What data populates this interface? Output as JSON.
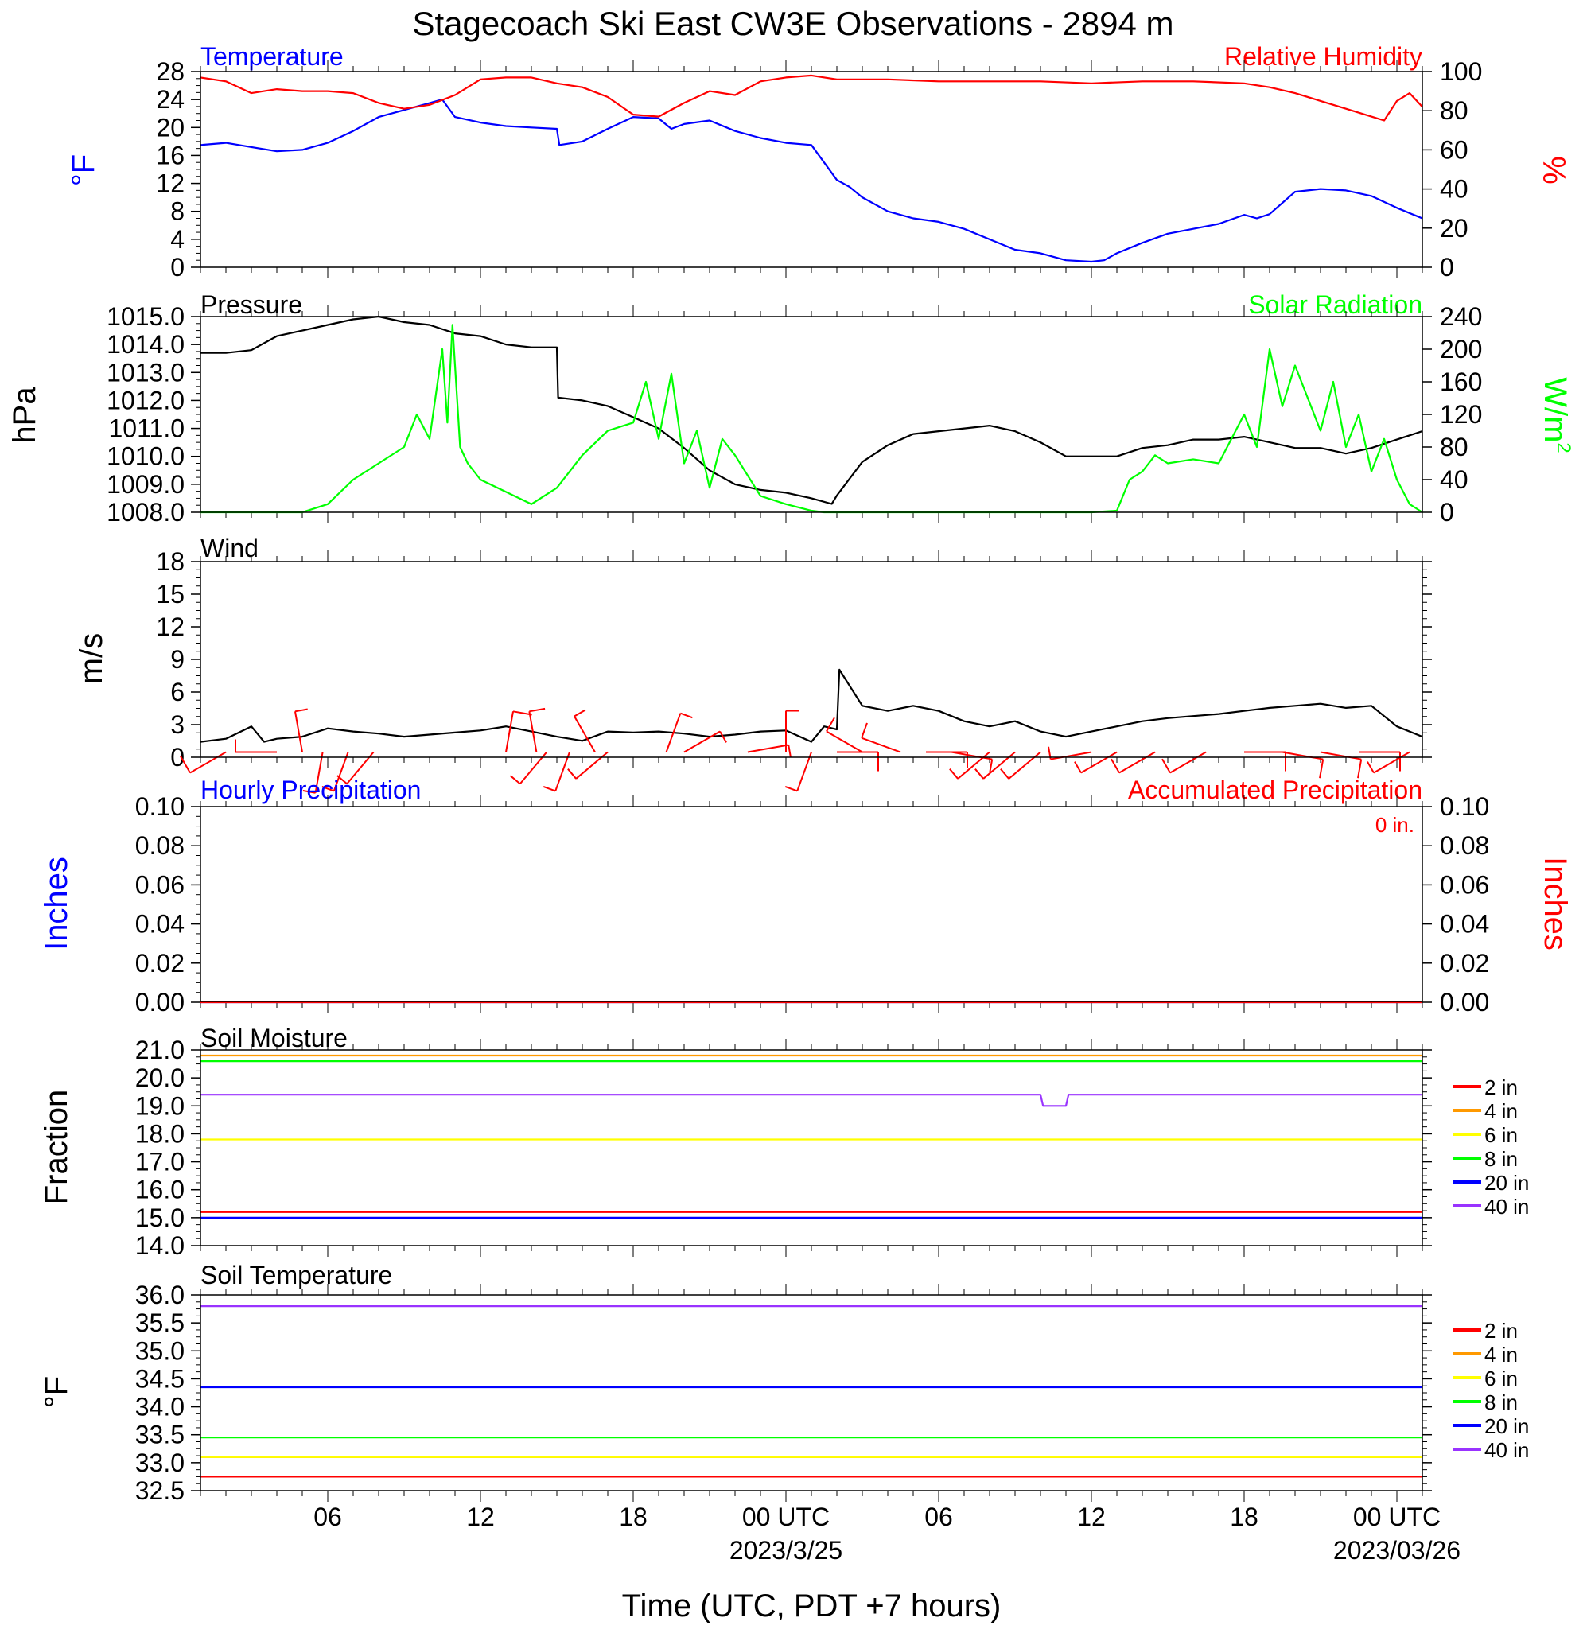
{
  "title": "Stagecoach Ski East CW3E Observations - 2894 m",
  "colors": {
    "temperature": "#0000ff",
    "humidity": "#ff0000",
    "pressure": "#000000",
    "solar": "#00ff00",
    "wind_speed": "#000000",
    "wind_barb": "#ff0000",
    "depth_2in": "#ff0000",
    "depth_4in": "#ff9900",
    "depth_6in": "#ffff00",
    "depth_8in": "#00ff00",
    "depth_20in": "#0000ff",
    "depth_40in": "#9933ff"
  },
  "x_axis": {
    "label": "Time (UTC, PDT +7 hours)",
    "ticks": [
      {
        "hour": 6,
        "label": "06",
        "date": ""
      },
      {
        "hour": 12,
        "label": "12",
        "date": ""
      },
      {
        "hour": 18,
        "label": "18",
        "date": ""
      },
      {
        "hour": 24,
        "label": "00 UTC",
        "date": "2023/3/25"
      },
      {
        "hour": 30,
        "label": "06",
        "date": ""
      },
      {
        "hour": 36,
        "label": "12",
        "date": ""
      },
      {
        "hour": 42,
        "label": "18",
        "date": ""
      },
      {
        "hour": 48,
        "label": "00 UTC",
        "date": "2023/03/26"
      }
    ],
    "range_hours": [
      1,
      49
    ]
  },
  "chart_data": [
    {
      "type": "line",
      "title": "",
      "left_title": "Temperature",
      "right_title": "Relative Humidity",
      "ylabel": "°F",
      "ylabel_right": "%",
      "ylim": [
        0,
        28
      ],
      "yticks": [
        "0",
        "4",
        "8",
        "12",
        "16",
        "20",
        "24",
        "28"
      ],
      "ylim_right": [
        0,
        100
      ],
      "yticks_right": [
        "0",
        "20",
        "40",
        "60",
        "80",
        "100"
      ],
      "series": [
        {
          "name": "Temperature",
          "axis": "left",
          "x": [
            1,
            2,
            3,
            4,
            5,
            6,
            7,
            8,
            9,
            10,
            10.5,
            11,
            12,
            13,
            14,
            15,
            15.1,
            16,
            17,
            18,
            19,
            19.5,
            20,
            21,
            22,
            23,
            24,
            25,
            26,
            26.5,
            27,
            28,
            29,
            30,
            31,
            32,
            33,
            34,
            35,
            36,
            36.5,
            37,
            38,
            39,
            40,
            41,
            42,
            42.5,
            43,
            44,
            45,
            46,
            47,
            48,
            49
          ],
          "y": [
            17.5,
            17.8,
            17.2,
            16.6,
            16.8,
            17.8,
            19.5,
            21.5,
            22.5,
            23.5,
            24,
            21.5,
            20.7,
            20.2,
            20.0,
            19.8,
            17.5,
            18.0,
            19.8,
            21.5,
            21.3,
            19.8,
            20.5,
            21.0,
            19.5,
            18.5,
            17.8,
            17.5,
            12.5,
            11.5,
            10.0,
            8.0,
            7.0,
            6.5,
            5.5,
            4.0,
            2.5,
            2.0,
            1.0,
            0.8,
            1.0,
            2.0,
            3.5,
            4.8,
            5.5,
            6.2,
            7.5,
            7.0,
            7.6,
            10.8,
            11.2,
            11.0,
            10.2,
            8.5,
            7.0
          ]
        },
        {
          "name": "Relative Humidity",
          "axis": "right",
          "x": [
            1,
            2,
            3,
            4,
            5,
            6,
            7,
            8,
            9,
            10,
            11,
            12,
            13,
            14,
            15,
            16,
            17,
            18,
            19,
            20,
            21,
            22,
            23,
            24,
            25,
            26,
            28,
            30,
            32,
            34,
            36,
            38,
            40,
            42,
            43,
            44,
            45,
            46,
            47,
            47.5,
            48,
            48.5,
            49
          ],
          "y": [
            97,
            95,
            89,
            91,
            90,
            90,
            89,
            84,
            81,
            83,
            88,
            96,
            97,
            97,
            94,
            92,
            87,
            78,
            77,
            84,
            90,
            88,
            95,
            97,
            98,
            96,
            96,
            95,
            95,
            95,
            94,
            95,
            95,
            94,
            92,
            89,
            85,
            81,
            77,
            75,
            85,
            89,
            82
          ]
        }
      ]
    },
    {
      "type": "line",
      "title": "",
      "left_title": "Pressure",
      "right_title": "Solar Radiation",
      "ylabel": "hPa",
      "ylabel_right": "W/m",
      "ylabel_right_sup": "2",
      "ylim": [
        1008,
        1015
      ],
      "yticks": [
        "1008.0",
        "1009.0",
        "1010.0",
        "1011.0",
        "1012.0",
        "1013.0",
        "1014.0",
        "1015.0"
      ],
      "ylim_right": [
        0,
        240
      ],
      "yticks_right": [
        "0",
        "40",
        "80",
        "120",
        "160",
        "200",
        "240"
      ],
      "series": [
        {
          "name": "Pressure",
          "axis": "left",
          "x": [
            1,
            2,
            3,
            4,
            5,
            6,
            7,
            8,
            9,
            10,
            11,
            12,
            13,
            14,
            15,
            15.05,
            16,
            17,
            18,
            19,
            20,
            21,
            22,
            23,
            24,
            25,
            25.8,
            26,
            27,
            28,
            29,
            30,
            31,
            32,
            33,
            34,
            35,
            36,
            37,
            38,
            39,
            40,
            41,
            42,
            43,
            44,
            45,
            46,
            47,
            48,
            49
          ],
          "y": [
            1013.7,
            1013.7,
            1013.8,
            1014.3,
            1014.5,
            1014.7,
            1014.9,
            1015.0,
            1014.8,
            1014.7,
            1014.4,
            1014.3,
            1014.0,
            1013.9,
            1013.9,
            1012.1,
            1012.0,
            1011.8,
            1011.4,
            1011.0,
            1010.3,
            1009.5,
            1009.0,
            1008.8,
            1008.7,
            1008.5,
            1008.3,
            1008.6,
            1009.8,
            1010.4,
            1010.8,
            1010.9,
            1011.0,
            1011.1,
            1010.9,
            1010.5,
            1010.0,
            1010.0,
            1010.0,
            1010.3,
            1010.4,
            1010.6,
            1010.6,
            1010.7,
            1010.5,
            1010.3,
            1010.3,
            1010.1,
            1010.3,
            1010.6,
            1010.9
          ]
        },
        {
          "name": "Solar Radiation",
          "axis": "right",
          "x": [
            1,
            5,
            6,
            7,
            8,
            9,
            9.5,
            10,
            10.5,
            10.7,
            10.9,
            11.2,
            11.5,
            12,
            13,
            14,
            15,
            16,
            17,
            18,
            18.5,
            19,
            19.5,
            20,
            20.5,
            21,
            21.5,
            22,
            23,
            24,
            25,
            25.5,
            35,
            36,
            37,
            37.5,
            38,
            38.5,
            39,
            40,
            41,
            42,
            42.5,
            43,
            43.5,
            44,
            44.5,
            45,
            45.5,
            46,
            46.5,
            47,
            47.5,
            48,
            48.5,
            49
          ],
          "y": [
            0,
            0,
            10,
            40,
            60,
            80,
            120,
            90,
            200,
            110,
            230,
            80,
            60,
            40,
            25,
            10,
            30,
            70,
            100,
            110,
            160,
            90,
            170,
            60,
            100,
            30,
            90,
            70,
            20,
            10,
            2,
            0,
            0,
            0,
            2,
            40,
            50,
            70,
            60,
            65,
            60,
            120,
            80,
            200,
            130,
            180,
            140,
            100,
            160,
            80,
            120,
            50,
            90,
            40,
            10,
            0
          ]
        }
      ]
    },
    {
      "type": "line",
      "title": "",
      "left_title": "Wind",
      "ylabel": "m/s",
      "ylim": [
        0,
        19
      ],
      "yticks": [
        "0",
        "3",
        "6",
        "9",
        "12",
        "15",
        "18"
      ],
      "series": [
        {
          "name": "",
          "axis": "left",
          "x": [
            1,
            2,
            3,
            3.5,
            4,
            5,
            6,
            7,
            8,
            9,
            10,
            11,
            12,
            13,
            14,
            15,
            16,
            17,
            18,
            19,
            20,
            21,
            22,
            23,
            24,
            25,
            25.5,
            26,
            26.1,
            27,
            28,
            29,
            30,
            31,
            32,
            33,
            34,
            35,
            36,
            37,
            38,
            39,
            40,
            41,
            42,
            43,
            44,
            45,
            46,
            47,
            48,
            49
          ],
          "y": [
            1.5,
            1.8,
            3.0,
            1.5,
            1.8,
            2.0,
            2.8,
            2.5,
            2.3,
            2.0,
            2.2,
            2.4,
            2.6,
            3.0,
            2.5,
            2.0,
            1.6,
            2.5,
            2.4,
            2.5,
            2.3,
            2.0,
            2.2,
            2.5,
            2.6,
            1.5,
            3.0,
            2.7,
            8.5,
            5.0,
            4.5,
            5.0,
            4.5,
            3.5,
            3.0,
            3.5,
            2.5,
            2.0,
            2.5,
            3.0,
            3.5,
            3.8,
            4.0,
            4.2,
            4.5,
            4.8,
            5.0,
            5.2,
            4.8,
            5.0,
            3.0,
            2.0
          ]
        }
      ]
    },
    {
      "type": "line",
      "title": "",
      "left_title": "Hourly Precipitation",
      "right_title": "Accumulated Precipitation",
      "annotation": "0 in.",
      "ylabel": "Inches",
      "ylabel_right": "Inches",
      "ylim": [
        0,
        0.1
      ],
      "yticks": [
        "0.00",
        "0.02",
        "0.04",
        "0.06",
        "0.08",
        "0.10"
      ],
      "ylim_right": [
        0,
        0.1
      ],
      "yticks_right": [
        "0.00",
        "0.02",
        "0.04",
        "0.06",
        "0.08",
        "0.10"
      ],
      "series": [
        {
          "name": "Hourly Precipitation",
          "axis": "left",
          "x": [
            1,
            49
          ],
          "y": [
            0,
            0
          ]
        },
        {
          "name": "Accumulated Precipitation",
          "axis": "right",
          "x": [
            1,
            49
          ],
          "y": [
            0,
            0
          ]
        }
      ]
    },
    {
      "type": "line",
      "title": "",
      "left_title": "Soil Moisture",
      "ylabel": "Fraction",
      "ylim": [
        14,
        21
      ],
      "yticks": [
        "14.0",
        "15.0",
        "16.0",
        "17.0",
        "18.0",
        "19.0",
        "20.0",
        "21.0"
      ],
      "series": [
        {
          "name": "2 in",
          "x": [
            1,
            49
          ],
          "y": [
            15.2,
            15.2
          ]
        },
        {
          "name": "4 in",
          "x": [
            1,
            49
          ],
          "y": [
            20.8,
            20.8
          ]
        },
        {
          "name": "6 in",
          "x": [
            1,
            49
          ],
          "y": [
            17.8,
            17.8
          ]
        },
        {
          "name": "8 in",
          "x": [
            1,
            49
          ],
          "y": [
            20.6,
            20.6
          ]
        },
        {
          "name": "20 in",
          "x": [
            1,
            49
          ],
          "y": [
            15.0,
            15.0
          ]
        },
        {
          "name": "40 in",
          "x": [
            1,
            34,
            34.1,
            35,
            35.1,
            49
          ],
          "y": [
            19.4,
            19.4,
            19.0,
            19.0,
            19.4,
            19.4
          ]
        }
      ]
    },
    {
      "type": "line",
      "title": "",
      "left_title": "Soil Temperature",
      "ylabel": "°F",
      "ylim": [
        32.5,
        36
      ],
      "yticks": [
        "32.5",
        "33.0",
        "33.5",
        "34.0",
        "34.5",
        "35.0",
        "35.5",
        "36.0"
      ],
      "series": [
        {
          "name": "2 in",
          "x": [
            1,
            49
          ],
          "y": [
            32.75,
            32.75
          ]
        },
        {
          "name": "4 in",
          "x": [
            1,
            49
          ],
          "y": [
            33.1,
            33.1
          ]
        },
        {
          "name": "6 in",
          "x": [
            1,
            49
          ],
          "y": [
            33.1,
            33.1
          ]
        },
        {
          "name": "8 in",
          "x": [
            1,
            49
          ],
          "y": [
            33.45,
            33.45
          ]
        },
        {
          "name": "20 in",
          "x": [
            1,
            49
          ],
          "y": [
            34.35,
            34.35
          ]
        },
        {
          "name": "40 in",
          "x": [
            1,
            49
          ],
          "y": [
            35.8,
            35.8
          ]
        }
      ]
    }
  ],
  "wind_barbs": [
    {
      "hour": 2,
      "dir": 240,
      "speed": 6
    },
    {
      "hour": 4,
      "dir": 270,
      "speed": 4
    },
    {
      "hour": 5,
      "dir": 350,
      "speed": 4
    },
    {
      "hour": 5.8,
      "dir": 190,
      "speed": 4
    },
    {
      "hour": 6.8,
      "dir": 200,
      "speed": 4
    },
    {
      "hour": 7.8,
      "dir": 220,
      "speed": 4
    },
    {
      "hour": 13,
      "dir": 10,
      "speed": 6
    },
    {
      "hour": 14.2,
      "dir": 350,
      "speed": 5
    },
    {
      "hour": 14.6,
      "dir": 220,
      "speed": 4
    },
    {
      "hour": 15.5,
      "dir": 200,
      "speed": 4
    },
    {
      "hour": 16.5,
      "dir": 330,
      "speed": 4
    },
    {
      "hour": 17,
      "dir": 230,
      "speed": 4
    },
    {
      "hour": 19.3,
      "dir": 20,
      "speed": 4
    },
    {
      "hour": 20,
      "dir": 60,
      "speed": 4
    },
    {
      "hour": 22.5,
      "dir": 80,
      "speed": 4
    },
    {
      "hour": 24,
      "dir": 0,
      "speed": 4
    },
    {
      "hour": 25,
      "dir": 200,
      "speed": 4
    },
    {
      "hour": 26,
      "dir": 90,
      "speed": 6
    },
    {
      "hour": 27,
      "dir": 300,
      "speed": 5
    },
    {
      "hour": 28.5,
      "dir": 290,
      "speed": 5
    },
    {
      "hour": 29.5,
      "dir": 90,
      "speed": 5
    },
    {
      "hour": 30.5,
      "dir": 100,
      "speed": 4
    },
    {
      "hour": 32,
      "dir": 230,
      "speed": 4
    },
    {
      "hour": 33,
      "dir": 230,
      "speed": 4
    },
    {
      "hour": 34,
      "dir": 230,
      "speed": 4
    },
    {
      "hour": 36,
      "dir": 260,
      "speed": 4
    },
    {
      "hour": 37,
      "dir": 240,
      "speed": 4
    },
    {
      "hour": 38.5,
      "dir": 240,
      "speed": 5
    },
    {
      "hour": 40.5,
      "dir": 240,
      "speed": 5
    },
    {
      "hour": 42,
      "dir": 90,
      "speed": 6
    },
    {
      "hour": 43.5,
      "dir": 100,
      "speed": 6
    },
    {
      "hour": 45,
      "dir": 100,
      "speed": 6
    },
    {
      "hour": 46.5,
      "dir": 90,
      "speed": 6
    },
    {
      "hour": 48.5,
      "dir": 240,
      "speed": 4
    }
  ]
}
